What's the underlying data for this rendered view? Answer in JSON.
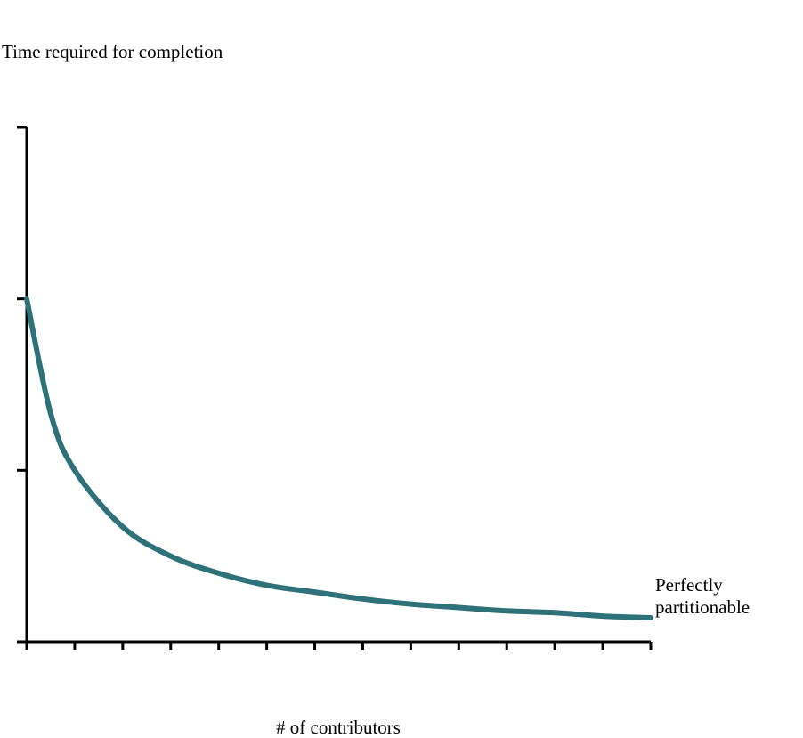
{
  "chart_data": {
    "type": "line",
    "title": "",
    "ylabel": "Time required for completion",
    "xlabel": "# of contributors",
    "xlim": [
      1,
      14
    ],
    "ylim": [
      0,
      3
    ],
    "x_tick_count": 14,
    "y_tick_values": [
      0,
      1,
      2,
      3
    ],
    "grid": false,
    "legend": "none",
    "series": [
      {
        "name": "Perfectly partitionable",
        "color": "#2e7179",
        "x": [
          1,
          1.5,
          2,
          3,
          4,
          5,
          6,
          7,
          8,
          9,
          10,
          11,
          12,
          13,
          14
        ],
        "y": [
          2.0,
          1.33,
          1.0,
          0.67,
          0.5,
          0.4,
          0.33,
          0.29,
          0.25,
          0.22,
          0.2,
          0.18,
          0.17,
          0.15,
          0.14
        ]
      }
    ],
    "annotations": {
      "end_label_line1": "Perfectly",
      "end_label_line2": "partitionable"
    }
  }
}
